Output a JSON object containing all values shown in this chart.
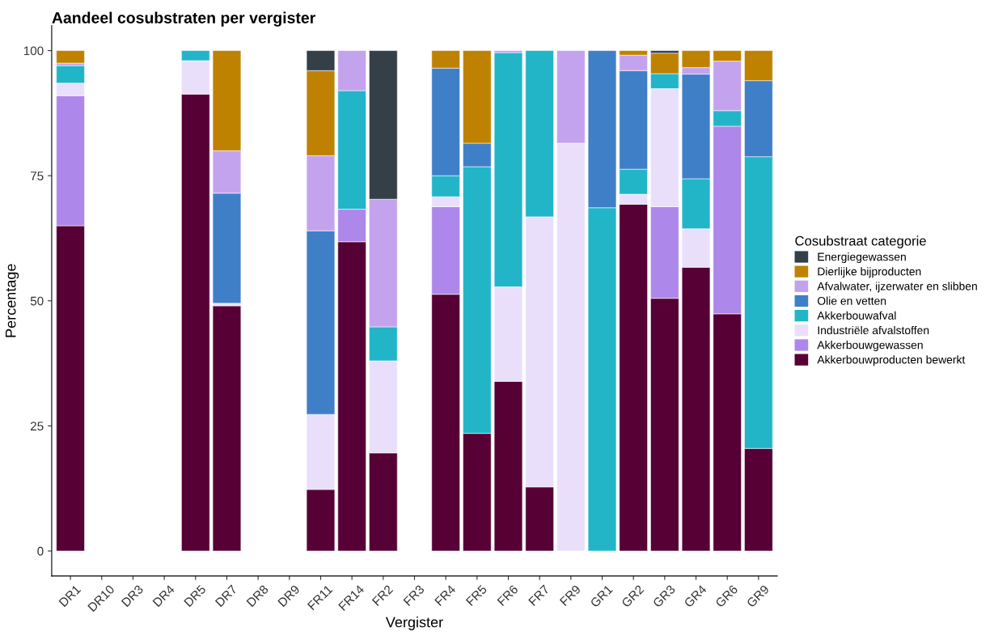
{
  "chart_data": {
    "type": "bar",
    "stacked": true,
    "title": "Aandeel cosubstraten per vergister",
    "xlabel": "Vergister",
    "ylabel": "Percentage",
    "legend_title": "Cosubstraat categorie",
    "legend": "right",
    "grid": false,
    "categories": [
      "DR1",
      "DR10",
      "DR3",
      "DR4",
      "DR5",
      "DR7",
      "DR8",
      "DR9",
      "FR11",
      "FR14",
      "FR2",
      "FR3",
      "FR4",
      "FR5",
      "FR6",
      "FR7",
      "FR9",
      "GR1",
      "GR2",
      "GR3",
      "GR4",
      "GR6",
      "GR9"
    ],
    "ylim": [
      -5,
      105
    ],
    "yticks": [
      0,
      25,
      50,
      75,
      100
    ],
    "series": [
      {
        "name": "Akkerbouwproducten bewerkt",
        "color": "#560035",
        "values": [
          65,
          null,
          null,
          null,
          91.3,
          49,
          null,
          null,
          12.3,
          61.8,
          19.6,
          null,
          51.3,
          23.5,
          33.9,
          12.8,
          null,
          null,
          69.3,
          50.5,
          56.7,
          47.4,
          20.5
        ]
      },
      {
        "name": "Akkerbouwgewassen",
        "color": "#ad88ea",
        "values": [
          26,
          null,
          null,
          null,
          null,
          null,
          null,
          null,
          null,
          6.5,
          null,
          null,
          17.5,
          null,
          null,
          null,
          null,
          null,
          null,
          18.3,
          null,
          37.5,
          null
        ]
      },
      {
        "name": "Industriële afvalstoffen",
        "color": "#eadffa",
        "values": [
          2.5,
          null,
          null,
          null,
          6.7,
          0.5,
          null,
          null,
          15,
          null,
          18.4,
          null,
          2,
          null,
          18.9,
          54,
          81.5,
          null,
          2,
          23.6,
          7.7,
          null,
          null
        ]
      },
      {
        "name": "Akkerbouwafval",
        "color": "#22b5c8",
        "values": [
          3.5,
          null,
          null,
          null,
          2,
          null,
          null,
          null,
          null,
          23.7,
          6.8,
          null,
          4.2,
          53.3,
          46.8,
          33.2,
          null,
          68.6,
          5,
          3,
          10,
          3.1,
          58.3
        ]
      },
      {
        "name": "Olie en vetten",
        "color": "#3f7fc8",
        "values": [
          null,
          null,
          null,
          null,
          null,
          22,
          null,
          null,
          36.7,
          null,
          null,
          null,
          21.5,
          4.7,
          null,
          null,
          null,
          31.4,
          19.7,
          null,
          20.9,
          null,
          15.2
        ]
      },
      {
        "name": "Afvalwater, ijzerwater en slibben",
        "color": "#c4a3ee",
        "values": [
          0.5,
          null,
          null,
          null,
          null,
          8.5,
          null,
          null,
          15,
          8,
          25.5,
          null,
          null,
          null,
          0.4,
          null,
          18.5,
          null,
          3.1,
          null,
          1.3,
          9.9,
          null
        ]
      },
      {
        "name": "Dierlijke bijproducten",
        "color": "#bf8200",
        "values": [
          2.5,
          null,
          null,
          null,
          null,
          20,
          null,
          null,
          17,
          null,
          null,
          null,
          3.5,
          18.5,
          null,
          null,
          null,
          null,
          0.9,
          4.1,
          3.4,
          2.1,
          6
        ]
      },
      {
        "name": "Energiegewassen",
        "color": "#343f48",
        "values": [
          null,
          null,
          null,
          null,
          null,
          null,
          null,
          null,
          4,
          null,
          29.7,
          null,
          null,
          null,
          null,
          null,
          null,
          null,
          null,
          0.5,
          null,
          null,
          null
        ]
      }
    ]
  }
}
